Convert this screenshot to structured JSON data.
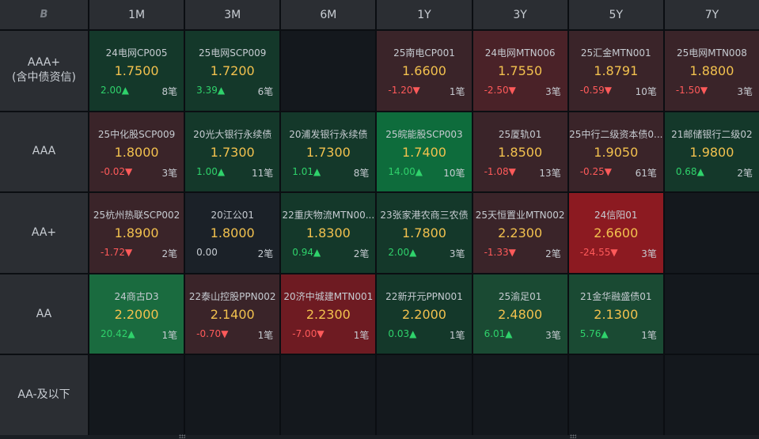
{
  "header": {
    "logo": "B",
    "tenors": [
      "1M",
      "3M",
      "6M",
      "1Y",
      "3Y",
      "5Y",
      "7Y"
    ]
  },
  "rows": [
    {
      "label": "AAA+\n(含中债资信)",
      "cells": [
        {
          "name": "24电网CP005",
          "yield": "1.7500",
          "change": "2.00▲",
          "dir": "up",
          "count": "8笔",
          "tone": "g1"
        },
        {
          "name": "25电网SCP009",
          "yield": "1.7200",
          "change": "3.39▲",
          "dir": "up",
          "count": "6笔",
          "tone": "g1"
        },
        null,
        {
          "name": "25南电CP001",
          "yield": "1.6600",
          "change": "-1.20▼",
          "dir": "down",
          "count": "1笔",
          "tone": "r1"
        },
        {
          "name": "24电网MTN006",
          "yield": "1.7550",
          "change": "-2.50▼",
          "dir": "down",
          "count": "3笔",
          "tone": "r2"
        },
        {
          "name": "25汇金MTN001",
          "yield": "1.8791",
          "change": "-0.59▼",
          "dir": "down",
          "count": "10笔",
          "tone": "r1"
        },
        {
          "name": "25电网MTN008",
          "yield": "1.8800",
          "change": "-1.50▼",
          "dir": "down",
          "count": "3笔",
          "tone": "r1"
        }
      ]
    },
    {
      "label": "AAA",
      "cells": [
        {
          "name": "25中化股SCP009",
          "yield": "1.8000",
          "change": "-0.02▼",
          "dir": "down",
          "count": "3笔",
          "tone": "r1"
        },
        {
          "name": "20光大银行永续债",
          "yield": "1.7300",
          "change": "1.00▲",
          "dir": "up",
          "count": "11笔",
          "tone": "g1"
        },
        {
          "name": "20浦发银行永续债",
          "yield": "1.7300",
          "change": "1.01▲",
          "dir": "up",
          "count": "8笔",
          "tone": "g1"
        },
        {
          "name": "25皖能股SCP003",
          "yield": "1.7400",
          "change": "14.00▲",
          "dir": "up",
          "count": "10笔",
          "tone": "g3"
        },
        {
          "name": "25厦轨01",
          "yield": "1.8500",
          "change": "-1.08▼",
          "dir": "down",
          "count": "13笔",
          "tone": "r1"
        },
        {
          "name": "25中行二级资本债0...",
          "yield": "1.9050",
          "change": "-0.25▼",
          "dir": "down",
          "count": "61笔",
          "tone": "r1"
        },
        {
          "name": "21邮储银行二级02",
          "yield": "1.9800",
          "change": "0.68▲",
          "dir": "up",
          "count": "2笔",
          "tone": "g1"
        }
      ]
    },
    {
      "label": "AA+",
      "cells": [
        {
          "name": "25杭州热联SCP002",
          "yield": "1.8900",
          "change": "-1.72▼",
          "dir": "down",
          "count": "2笔",
          "tone": "r1"
        },
        {
          "name": "20江公01",
          "yield": "1.8000",
          "change": "0.00",
          "dir": "flat",
          "count": "2笔",
          "tone": "n0"
        },
        {
          "name": "22重庆物流MTN00...",
          "yield": "1.8300",
          "change": "0.94▲",
          "dir": "up",
          "count": "2笔",
          "tone": "g1"
        },
        {
          "name": "23张家港农商三农债",
          "yield": "1.7800",
          "change": "2.00▲",
          "dir": "up",
          "count": "3笔",
          "tone": "g1"
        },
        {
          "name": "25天恒置业MTN002",
          "yield": "2.2300",
          "change": "-1.33▼",
          "dir": "down",
          "count": "2笔",
          "tone": "r1"
        },
        {
          "name": "24信阳01",
          "yield": "2.6600",
          "change": "-24.55▼",
          "dir": "down",
          "count": "3笔",
          "tone": "r4"
        },
        null
      ]
    },
    {
      "label": "AA",
      "cells": [
        {
          "name": "24商古D3",
          "yield": "2.2000",
          "change": "20.42▲",
          "dir": "up",
          "count": "1笔",
          "tone": "g4"
        },
        {
          "name": "22泰山控股PPN002",
          "yield": "2.1400",
          "change": "-0.70▼",
          "dir": "down",
          "count": "1笔",
          "tone": "r1"
        },
        {
          "name": "20济中城建MTN001",
          "yield": "2.2300",
          "change": "-7.00▼",
          "dir": "down",
          "count": "1笔",
          "tone": "r3"
        },
        {
          "name": "22新开元PPN001",
          "yield": "2.2000",
          "change": "0.03▲",
          "dir": "up",
          "count": "1笔",
          "tone": "g1"
        },
        {
          "name": "25渝足01",
          "yield": "2.4800",
          "change": "6.01▲",
          "dir": "up",
          "count": "3笔",
          "tone": "g2"
        },
        {
          "name": "21金华融盛债01",
          "yield": "2.1300",
          "change": "5.76▲",
          "dir": "up",
          "count": "1笔",
          "tone": "g2"
        },
        null
      ]
    },
    {
      "label": "AA-及以下",
      "cells": [
        null,
        null,
        null,
        null,
        null,
        null,
        null
      ]
    }
  ]
}
